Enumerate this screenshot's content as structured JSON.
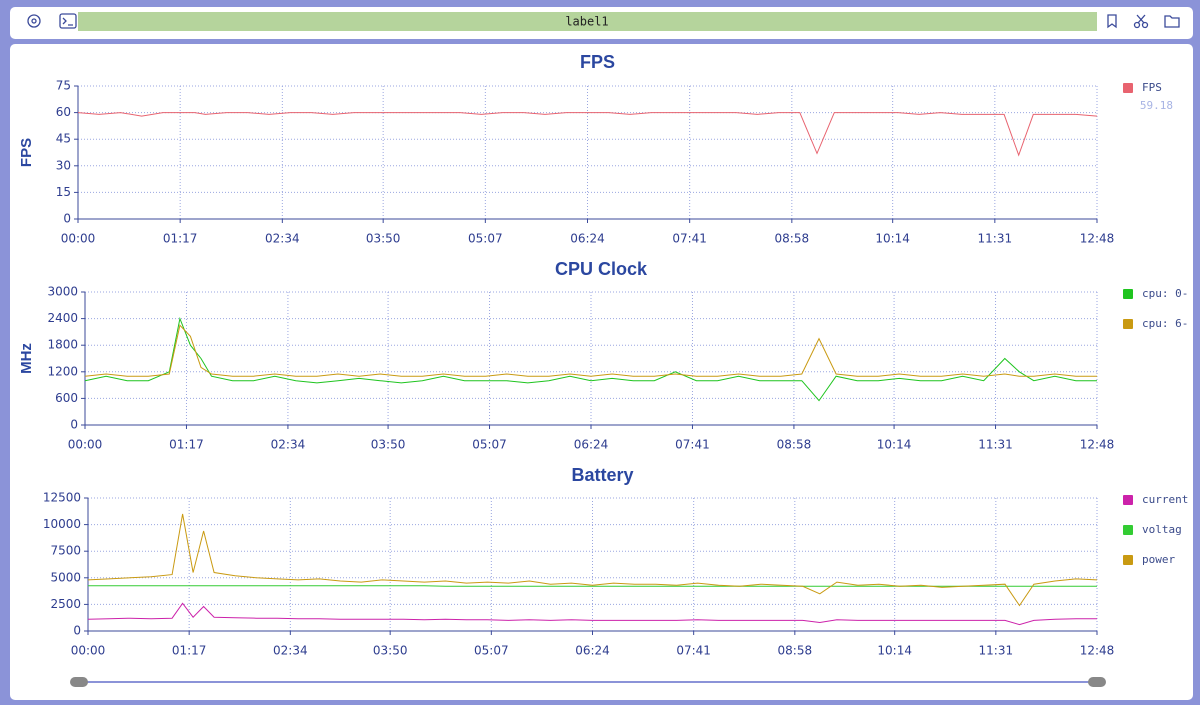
{
  "toolbar": {
    "label": "label1"
  },
  "chart_data": [
    {
      "type": "line",
      "title": "FPS",
      "y_label": "FPS",
      "legend_value": 59.18,
      "x": [
        0,
        16,
        32,
        48,
        64,
        72,
        80,
        88,
        96,
        112,
        128,
        144,
        160,
        176,
        192,
        208,
        224,
        240,
        256,
        272,
        288,
        304,
        320,
        336,
        352,
        368,
        384,
        400,
        416,
        432,
        448,
        464,
        480,
        496,
        512,
        528,
        544,
        557,
        570,
        586,
        602,
        618,
        634,
        650,
        666,
        682,
        698,
        709,
        720,
        736,
        752,
        768
      ],
      "series": [
        {
          "name": "FPS",
          "color": "#e8636f",
          "values": [
            60,
            59,
            60,
            58,
            60,
            60,
            60,
            60,
            59,
            60,
            60,
            59,
            60,
            60,
            59,
            60,
            60,
            60,
            60,
            60,
            60,
            59,
            60,
            60,
            59,
            60,
            60,
            60,
            59,
            60,
            60,
            60,
            60,
            60,
            59,
            60,
            60,
            37,
            60,
            60,
            60,
            60,
            59,
            60,
            59,
            59,
            59,
            36,
            59,
            59,
            59,
            58
          ]
        }
      ],
      "xlim": [
        0,
        768
      ],
      "xticks": [
        {
          "value": 0,
          "label": "00:00"
        },
        {
          "value": 77,
          "label": "01:17"
        },
        {
          "value": 154,
          "label": "02:34"
        },
        {
          "value": 230,
          "label": "03:50"
        },
        {
          "value": 307,
          "label": "05:07"
        },
        {
          "value": 384,
          "label": "06:24"
        },
        {
          "value": 461,
          "label": "07:41"
        },
        {
          "value": 538,
          "label": "08:58"
        },
        {
          "value": 614,
          "label": "10:14"
        },
        {
          "value": 691,
          "label": "11:31"
        },
        {
          "value": 768,
          "label": "12:48"
        }
      ],
      "ylim": [
        0,
        75
      ],
      "yticks": [
        0,
        15,
        30,
        45,
        60,
        75
      ],
      "grid": true
    },
    {
      "type": "line",
      "title": "CPU Clock",
      "y_label": "MHz",
      "x": [
        0,
        16,
        32,
        48,
        64,
        72,
        80,
        88,
        96,
        112,
        128,
        144,
        160,
        176,
        192,
        208,
        224,
        240,
        256,
        272,
        288,
        304,
        320,
        336,
        352,
        368,
        384,
        400,
        416,
        432,
        448,
        464,
        480,
        496,
        512,
        528,
        544,
        557,
        570,
        586,
        602,
        618,
        634,
        650,
        666,
        682,
        698,
        709,
        720,
        736,
        752,
        768
      ],
      "series": [
        {
          "name": "cpu: 0-",
          "color": "#1fc41f",
          "values": [
            1000,
            1100,
            1000,
            1000,
            1200,
            2400,
            1800,
            1500,
            1100,
            1000,
            1000,
            1100,
            1000,
            950,
            1000,
            1050,
            1000,
            950,
            1000,
            1100,
            1000,
            1000,
            1000,
            950,
            1000,
            1100,
            1000,
            1050,
            1000,
            1000,
            1200,
            1000,
            1000,
            1100,
            1000,
            1000,
            1000,
            550,
            1100,
            1000,
            1000,
            1050,
            1000,
            1000,
            1100,
            1000,
            1500,
            1200,
            1000,
            1100,
            1000,
            1000
          ]
        },
        {
          "name": "cpu: 6-",
          "color": "#c99a12",
          "values": [
            1100,
            1150,
            1100,
            1100,
            1150,
            2250,
            2000,
            1300,
            1150,
            1100,
            1100,
            1150,
            1100,
            1100,
            1150,
            1100,
            1150,
            1100,
            1100,
            1150,
            1100,
            1100,
            1150,
            1100,
            1100,
            1150,
            1100,
            1150,
            1100,
            1100,
            1150,
            1100,
            1100,
            1150,
            1100,
            1100,
            1150,
            1950,
            1150,
            1100,
            1100,
            1150,
            1100,
            1100,
            1150,
            1100,
            1150,
            1100,
            1100,
            1150,
            1100,
            1100
          ]
        }
      ],
      "xlim": [
        0,
        768
      ],
      "xticks": [
        {
          "value": 0,
          "label": "00:00"
        },
        {
          "value": 77,
          "label": "01:17"
        },
        {
          "value": 154,
          "label": "02:34"
        },
        {
          "value": 230,
          "label": "03:50"
        },
        {
          "value": 307,
          "label": "05:07"
        },
        {
          "value": 384,
          "label": "06:24"
        },
        {
          "value": 461,
          "label": "07:41"
        },
        {
          "value": 538,
          "label": "08:58"
        },
        {
          "value": 614,
          "label": "10:14"
        },
        {
          "value": 691,
          "label": "11:31"
        },
        {
          "value": 768,
          "label": "12:48"
        }
      ],
      "ylim": [
        0,
        3000
      ],
      "yticks": [
        0,
        600,
        1200,
        1800,
        2400,
        3000
      ],
      "grid": true
    },
    {
      "type": "line",
      "title": "Battery",
      "x": [
        0,
        16,
        32,
        48,
        64,
        72,
        80,
        88,
        96,
        112,
        128,
        144,
        160,
        176,
        192,
        208,
        224,
        240,
        256,
        272,
        288,
        304,
        320,
        336,
        352,
        368,
        384,
        400,
        416,
        432,
        448,
        464,
        480,
        496,
        512,
        528,
        544,
        557,
        570,
        586,
        602,
        618,
        634,
        650,
        666,
        682,
        698,
        709,
        720,
        736,
        752,
        768
      ],
      "series": [
        {
          "name": "current",
          "color": "#cc22aa",
          "values": [
            1100,
            1150,
            1200,
            1150,
            1200,
            2600,
            1300,
            2300,
            1300,
            1250,
            1200,
            1200,
            1150,
            1150,
            1100,
            1100,
            1100,
            1100,
            1050,
            1100,
            1050,
            1050,
            1000,
            1050,
            1000,
            1050,
            1000,
            1000,
            1000,
            1000,
            1000,
            1050,
            1000,
            1000,
            1000,
            1000,
            1000,
            800,
            1050,
            1000,
            1000,
            1000,
            1000,
            1000,
            1000,
            1000,
            1000,
            600,
            1000,
            1100,
            1150,
            1150
          ]
        },
        {
          "name": "voltag",
          "color": "#33cc33",
          "values": [
            4250,
            4250,
            4250,
            4250,
            4250,
            4250,
            4250,
            4250,
            4250,
            4250,
            4250,
            4250,
            4250,
            4250,
            4250,
            4250,
            4250,
            4250,
            4250,
            4200,
            4200,
            4200,
            4200,
            4200,
            4200,
            4200,
            4200,
            4200,
            4200,
            4200,
            4200,
            4200,
            4200,
            4200,
            4200,
            4200,
            4200,
            4200,
            4200,
            4200,
            4200,
            4200,
            4200,
            4200,
            4200,
            4200,
            4200,
            4200,
            4200,
            4200,
            4200,
            4200
          ]
        },
        {
          "name": "power",
          "color": "#c99a12",
          "values": [
            4800,
            4900,
            5000,
            5100,
            5300,
            11000,
            5500,
            9400,
            5500,
            5200,
            5000,
            4900,
            4800,
            4900,
            4700,
            4600,
            4800,
            4700,
            4600,
            4700,
            4500,
            4600,
            4500,
            4700,
            4400,
            4500,
            4300,
            4500,
            4400,
            4400,
            4300,
            4500,
            4300,
            4200,
            4400,
            4300,
            4200,
            3500,
            4600,
            4300,
            4400,
            4200,
            4300,
            4100,
            4200,
            4300,
            4400,
            2400,
            4400,
            4700,
            4900,
            4800
          ]
        }
      ],
      "xlim": [
        0,
        768
      ],
      "xticks": [
        {
          "value": 0,
          "label": "00:00"
        },
        {
          "value": 77,
          "label": "01:17"
        },
        {
          "value": 154,
          "label": "02:34"
        },
        {
          "value": 230,
          "label": "03:50"
        },
        {
          "value": 307,
          "label": "05:07"
        },
        {
          "value": 384,
          "label": "06:24"
        },
        {
          "value": 461,
          "label": "07:41"
        },
        {
          "value": 538,
          "label": "08:58"
        },
        {
          "value": 614,
          "label": "10:14"
        },
        {
          "value": 691,
          "label": "11:31"
        },
        {
          "value": 768,
          "label": "12:48"
        }
      ],
      "ylim": [
        0,
        12500
      ],
      "yticks": [
        0,
        2500,
        5000,
        7500,
        10000,
        12500
      ],
      "grid": true
    }
  ]
}
